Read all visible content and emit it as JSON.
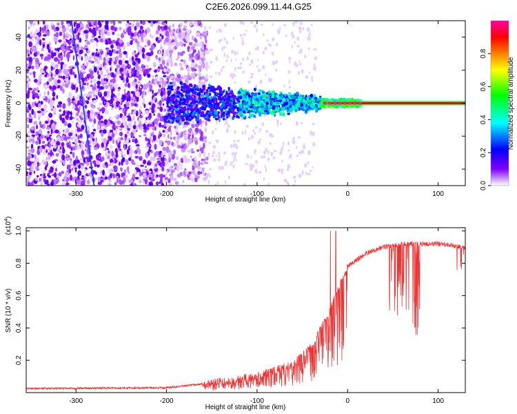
{
  "title": "C2E6.2026.099.11.44.G25",
  "chart_data": [
    {
      "type": "heatmap",
      "name": "spectrogram",
      "xlabel": "Height of straight line (km)",
      "ylabel": "Frequency (Hz)",
      "xlim": [
        -355,
        130
      ],
      "ylim": [
        -50,
        50
      ],
      "x_ticks": [
        -300,
        -200,
        -100,
        0,
        100
      ],
      "y_ticks": [
        -40,
        -20,
        0,
        20,
        40
      ],
      "colorbar": {
        "label": "Normalized spectral amplitude",
        "range": [
          0,
          1
        ],
        "ticks": [
          "0.0",
          "0.2",
          "0.4",
          "0.6",
          "0.8"
        ],
        "colors": [
          "#ffffff",
          "#8000ff",
          "#0000ff",
          "#00ffff",
          "#00ff00",
          "#ffff00",
          "#ff8000",
          "#ff0000",
          "#ff00a0"
        ]
      },
      "features": {
        "noise_floor_end_km": -155,
        "signal_core_start_km": -30,
        "carrier_frequency_hz": 0,
        "diagonal_streak_km": [
          -305,
          -280
        ],
        "diagonal_streak_hz": [
          50,
          -50
        ]
      }
    },
    {
      "type": "line",
      "name": "snr",
      "xlabel": "Height of straight line (km)",
      "ylabel": "SNR (10 * v/v)",
      "y_multiplier": "(x10^4)",
      "xlim": [
        -355,
        130
      ],
      "ylim": [
        0,
        1.02
      ],
      "x_ticks": [
        -300,
        -200,
        -100,
        0,
        100
      ],
      "y_ticks": [
        "0.2",
        "0.4",
        "0.6",
        "0.8",
        "1.0"
      ],
      "color": "#ee3333",
      "envelope_km": [
        -355,
        -200,
        -150,
        -100,
        -60,
        -40,
        -20,
        -10,
        0,
        20,
        40,
        60,
        80,
        100,
        130
      ],
      "envelope_snr": [
        0.025,
        0.03,
        0.06,
        0.1,
        0.18,
        0.28,
        0.5,
        0.65,
        0.78,
        0.86,
        0.9,
        0.92,
        0.92,
        0.92,
        0.9
      ]
    }
  ]
}
